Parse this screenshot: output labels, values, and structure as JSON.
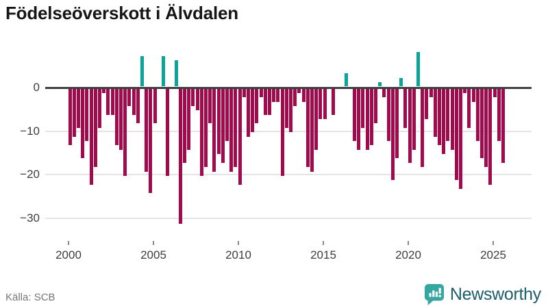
{
  "title": "Födelseöverskott i Älvdalen",
  "source": "Källa: SCB",
  "brand": {
    "name": "Newsworthy",
    "icon": "newsworthy-speech-bubble-chart-icon"
  },
  "colors": {
    "negative_bar": "#a20a4d",
    "positive_bar": "#0ca39b",
    "zero_line": "#3f3f3f",
    "gridline": "#e4e4e4",
    "axis_text": "#3d3d3d",
    "source_text": "#757575",
    "brand_text": "#1d5d6b",
    "brand_icon": "#36a7a0"
  },
  "chart_data": {
    "type": "bar",
    "title": "Födelseöverskott i Älvdalen",
    "xlabel": "",
    "ylabel": "",
    "frequency": "quarterly",
    "start_period": "2000-Q1",
    "end_period": "2025-Q3",
    "ylim": [
      -32,
      9
    ],
    "grid": "horizontal",
    "legend": "none",
    "x_ticks": [
      2000,
      2005,
      2010,
      2015,
      2020,
      2025
    ],
    "y_ticks": [
      {
        "label": "0",
        "value": 0
      },
      {
        "label": "−10",
        "value": -10
      },
      {
        "label": "−20",
        "value": -20
      },
      {
        "label": "−30",
        "value": -30
      }
    ],
    "values": [
      -13,
      -11,
      -9,
      -16,
      -12,
      -22,
      -18,
      -9,
      -1,
      -6,
      -6,
      -13,
      -14,
      -20,
      -4,
      -6,
      -8,
      7,
      -19,
      -24,
      -8,
      0,
      7,
      -20,
      0,
      6,
      -31,
      -17,
      -14,
      -4,
      -5,
      -20,
      -18,
      -8,
      -19,
      -15,
      -17,
      -12,
      -19,
      -18,
      -22,
      -2,
      -11,
      -10,
      -8,
      -2,
      -6,
      -6,
      -3,
      -3,
      -20,
      -9,
      -10,
      -4,
      -1,
      -3,
      -18,
      -19,
      -14,
      -7,
      -7,
      0,
      -6,
      0,
      0,
      3,
      0,
      -12,
      -14,
      -9,
      -14,
      -13,
      -8,
      1,
      -2,
      -12,
      -21,
      -16,
      2,
      -9,
      -17,
      -14,
      8,
      -18,
      -7,
      -2,
      -11,
      -13,
      -15,
      -12,
      -14,
      -21,
      -23,
      -1,
      -9,
      -3,
      -12,
      -16,
      -18,
      -22,
      -2,
      -12,
      -17
    ]
  }
}
